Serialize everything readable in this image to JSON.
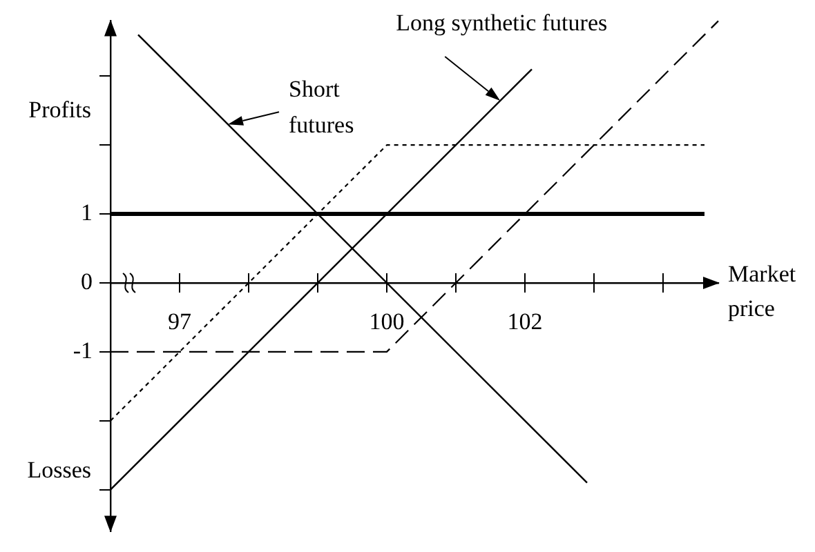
{
  "chart_data": {
    "type": "line",
    "xlabel": "Market price",
    "annotations": [
      "Profits",
      "Losses"
    ],
    "xlim": [
      96,
      104.8
    ],
    "ylim": [
      -3.6,
      3.8
    ],
    "xticks": [
      97,
      {
        "value": 98,
        "label": null
      },
      {
        "value": 99,
        "label": null
      },
      100,
      {
        "value": 101,
        "label": null
      },
      102,
      {
        "value": 103,
        "label": null
      },
      {
        "value": 104,
        "label": null
      }
    ],
    "yticks": [
      {
        "value": -3,
        "label": null
      },
      {
        "value": -2,
        "label": null
      },
      -1,
      0,
      1,
      {
        "value": 2,
        "label": null
      },
      {
        "value": 3,
        "label": null
      }
    ],
    "marker": "none",
    "series": [
      {
        "name": "Short futures",
        "color": "#000000",
        "line_style": "solid",
        "x": [
          96.4,
          102.9
        ],
        "values": [
          3.6,
          -2.9
        ]
      },
      {
        "name": "Long synthetic futures",
        "color": "#000000",
        "line_style": "solid",
        "x": [
          96,
          102.1
        ],
        "values": [
          -3,
          3.1
        ]
      },
      {
        "color": "#000000",
        "line_style": "dotted",
        "x": [
          96,
          100,
          104.6
        ],
        "values": [
          -2,
          2,
          2
        ]
      },
      {
        "color": "#000000",
        "line_style": "dashed",
        "x": [
          96,
          100,
          104.8
        ],
        "values": [
          -1,
          -1,
          3.8
        ]
      },
      {
        "color": "#000000",
        "line_style": "solid",
        "x": [
          96,
          104.6
        ],
        "values": [
          1,
          1
        ]
      }
    ]
  }
}
